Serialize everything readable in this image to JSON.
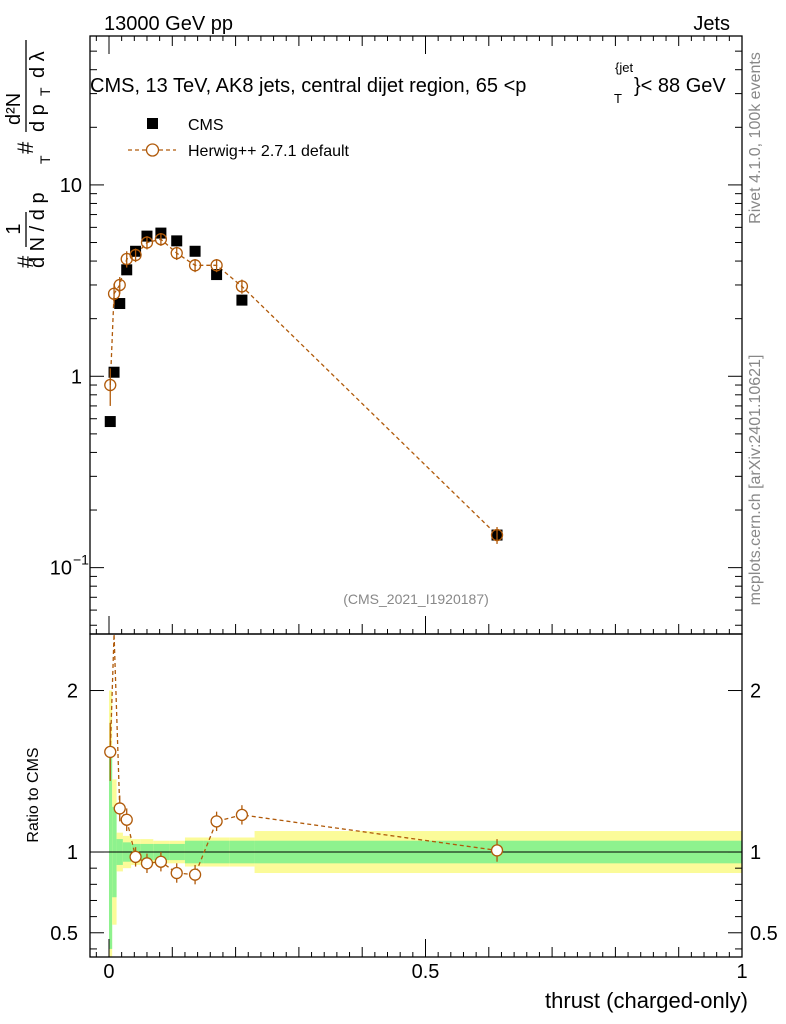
{
  "header": {
    "left": "13000 GeV pp",
    "right": "Jets"
  },
  "title": {
    "main": "CMS, 13 TeV, AK8 jets, central dijet region, 65 <p",
    "sub": "T",
    "sup": "{jet",
    "tail": "}< 88 GeV"
  },
  "watermark": "(CMS_2021_I1920187)",
  "side_labels": {
    "upper": "Rivet 4.1.0,  100k events",
    "lower": "mcplots.cern.ch [arXiv:2401.10621]"
  },
  "axes": {
    "ylabel_parts": {
      "hash1": "#",
      "one": "1",
      "dN": "d N / d p",
      "T": "T",
      "hash2": "#",
      "d2N": "d²N",
      "dp": "d p",
      "dlambda": "d λ"
    },
    "ratio_ylabel": "Ratio to CMS",
    "xlabel": "thrust (charged-only)",
    "main_ticks": [
      {
        "v": 10,
        "label": "10"
      },
      {
        "v": 1,
        "label": "1"
      },
      {
        "v": 0.1,
        "label": "10",
        "exp": "−1"
      }
    ],
    "ratio_ticks": [
      {
        "v": 2,
        "label": "2"
      },
      {
        "v": 1,
        "label": "1"
      },
      {
        "v": 0.5,
        "label": "0.5"
      }
    ],
    "x_ticks": [
      {
        "v": 0,
        "label": "0"
      },
      {
        "v": 0.5,
        "label": "0.5"
      },
      {
        "v": 1,
        "label": "1"
      }
    ]
  },
  "legend": {
    "data": "CMS",
    "mc": "Herwig++ 2.7.1 default"
  },
  "colors": {
    "mc": "#b05a0a",
    "green": "#8ef28e",
    "yellow": "#fbfb99",
    "data": "#000000"
  },
  "chart_data": {
    "type": "scatter",
    "title": "CMS, 13 TeV, AK8 jets, central dijet region, 65 < pT jet < 88 GeV",
    "xlabel": "thrust (charged-only)",
    "ylabel": "1/N dN/dλ",
    "xlim": [
      -0.03,
      1.0
    ],
    "ylim": [
      0.045,
      60
    ],
    "yscale": "log",
    "series": [
      {
        "name": "CMS",
        "x": [
          0.002,
          0.008,
          0.017,
          0.028,
          0.042,
          0.06,
          0.082,
          0.107,
          0.136,
          0.17,
          0.21,
          0.613
        ],
        "y": [
          0.58,
          1.05,
          2.4,
          3.6,
          4.5,
          5.4,
          5.6,
          5.1,
          4.5,
          3.4,
          2.5,
          0.148
        ]
      },
      {
        "name": "Herwig++ 2.7.1 default",
        "x": [
          0.002,
          0.008,
          0.017,
          0.028,
          0.042,
          0.06,
          0.082,
          0.107,
          0.136,
          0.17,
          0.21,
          0.613
        ],
        "y": [
          0.9,
          2.7,
          3.0,
          4.1,
          4.3,
          5.0,
          5.2,
          4.4,
          3.8,
          3.8,
          2.95,
          0.148
        ],
        "yerr": [
          0.2,
          0.35,
          0.3,
          0.4,
          0.35,
          0.4,
          0.4,
          0.35,
          0.3,
          0.3,
          0.25,
          0.015
        ]
      }
    ],
    "ratio": {
      "ylabel": "Ratio to CMS",
      "ylim": [
        0.35,
        2.35
      ],
      "bins": [
        0,
        0.005,
        0.012,
        0.022,
        0.035,
        0.05,
        0.07,
        0.095,
        0.12,
        0.15,
        0.19,
        0.23,
        1.0
      ],
      "green_half": [
        0.6,
        0.28,
        0.08,
        0.06,
        0.05,
        0.05,
        0.05,
        0.05,
        0.07,
        0.07,
        0.07,
        0.07
      ],
      "yellow_half": [
        1.0,
        0.45,
        0.12,
        0.1,
        0.08,
        0.08,
        0.07,
        0.07,
        0.09,
        0.09,
        0.09,
        0.13
      ],
      "mc_x": [
        0.002,
        0.017,
        0.028,
        0.042,
        0.06,
        0.082,
        0.107,
        0.136,
        0.17,
        0.21,
        0.613
      ],
      "mc_y": [
        1.62,
        1.27,
        1.2,
        0.97,
        0.93,
        0.94,
        0.87,
        0.86,
        1.19,
        1.23,
        1.01
      ],
      "mc_err": [
        0.18,
        0.08,
        0.07,
        0.06,
        0.06,
        0.06,
        0.06,
        0.06,
        0.06,
        0.06,
        0.07
      ]
    }
  }
}
